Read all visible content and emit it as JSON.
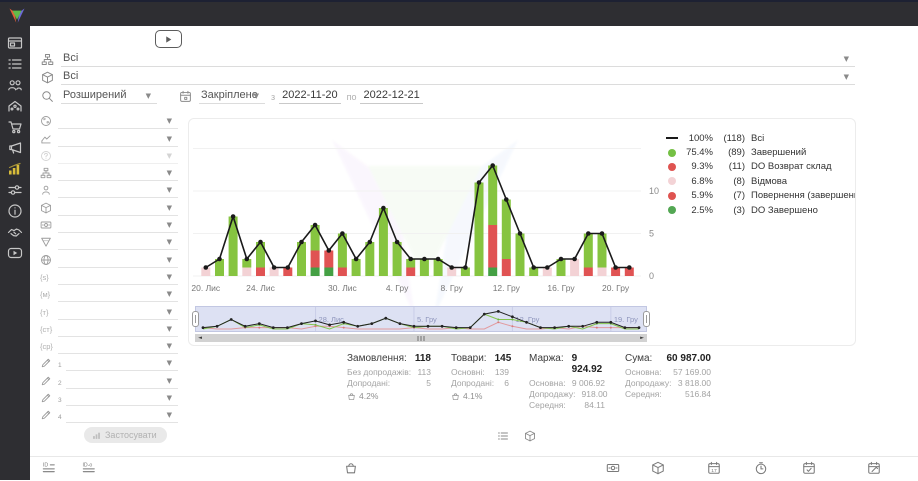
{
  "sidebar": {
    "items": [
      {
        "icon": "window-icon"
      },
      {
        "icon": "list-icon"
      },
      {
        "icon": "users-icon"
      },
      {
        "icon": "building-icon"
      },
      {
        "icon": "cart-icon"
      },
      {
        "icon": "megaphone-icon"
      },
      {
        "icon": "analytics-icon",
        "active": true
      },
      {
        "icon": "sliders-icon"
      },
      {
        "icon": "info-icon"
      },
      {
        "icon": "handshake-icon"
      },
      {
        "icon": "video-icon"
      }
    ]
  },
  "filters": {
    "source": {
      "icon": "sitemap-icon",
      "value": "Всі"
    },
    "product": {
      "icon": "box-icon",
      "value": "Всі"
    },
    "mode": {
      "icon": "search-icon",
      "value": "Розширений"
    },
    "period": {
      "icon": "calendar-icon",
      "value": "Закріплене"
    },
    "from_label": "з",
    "date_from": "2022-11-20",
    "to_label": "по",
    "date_to": "2022-12-21"
  },
  "filter_panel": {
    "rows": [
      {
        "icon": "globe-icon"
      },
      {
        "icon": "trend-icon"
      },
      {
        "icon": "question-icon",
        "disabled": true
      },
      {
        "icon": "sitemap-icon"
      },
      {
        "icon": "person-icon"
      },
      {
        "icon": "box-icon"
      },
      {
        "icon": "money-icon"
      },
      {
        "icon": "funnel-icon"
      },
      {
        "icon": "web-icon"
      },
      {
        "text": "{s}"
      },
      {
        "text": "{м}"
      },
      {
        "text": "{т}"
      },
      {
        "text": "{ст}"
      },
      {
        "text": "{ср}"
      },
      {
        "icon": "pencil-icon",
        "sub": "1"
      },
      {
        "icon": "pencil-icon",
        "sub": "2"
      },
      {
        "icon": "pencil-icon",
        "sub": "3"
      },
      {
        "icon": "pencil-icon",
        "sub": "4"
      }
    ],
    "apply_label": "Застосувати"
  },
  "chart_data": {
    "type": "bar",
    "stacked": true,
    "days": 32,
    "date_range": [
      "2022-11-20",
      "2022-12-21"
    ],
    "x_tick_labels": [
      "20. Лис",
      "24. Лис",
      "30. Лис",
      "4. Гру",
      "8. Гру",
      "12. Гру",
      "16. Гру",
      "20. Гру"
    ],
    "x_tick_indices": [
      0,
      4,
      10,
      14,
      18,
      22,
      26,
      30
    ],
    "y_ticks": [
      0,
      5,
      10
    ],
    "ylim": [
      0,
      15
    ],
    "series": [
      {
        "name": "DO Завершено",
        "color": "#44a044",
        "values": [
          0,
          0,
          0,
          0,
          0,
          0,
          0,
          0,
          1,
          1,
          0,
          0,
          0,
          0,
          0,
          0,
          0,
          0,
          0,
          0,
          0,
          1,
          0,
          0,
          0,
          0,
          0,
          0,
          0,
          0,
          0,
          0
        ]
      },
      {
        "name": "DO Возврат склад / Повернення (завершений)",
        "color": "#e05353",
        "values": [
          0,
          0,
          0,
          0,
          1,
          0,
          1,
          0,
          2,
          2,
          1,
          0,
          0,
          0,
          0,
          1,
          0,
          0,
          0,
          0,
          0,
          5,
          2,
          0,
          0,
          0,
          0,
          0,
          1,
          0,
          1,
          1
        ]
      },
      {
        "name": "Відмова",
        "color": "#f3d2d5",
        "values": [
          1,
          0,
          0,
          1,
          0,
          1,
          0,
          0,
          0,
          0,
          0,
          0,
          0,
          0,
          0,
          0,
          0,
          0,
          1,
          0,
          0,
          0,
          0,
          0,
          0,
          1,
          0,
          2,
          0,
          1,
          0,
          0
        ]
      },
      {
        "name": "Завершений",
        "color": "#86c440",
        "values": [
          0,
          2,
          7,
          1,
          3,
          0,
          0,
          4,
          3,
          0,
          4,
          2,
          4,
          8,
          4,
          1,
          2,
          2,
          0,
          1,
          11,
          7,
          7,
          5,
          1,
          0,
          2,
          0,
          4,
          4,
          0,
          0
        ]
      }
    ],
    "line": {
      "name": "Всі",
      "color": "#1a1a1a",
      "values": [
        1,
        2,
        7,
        2,
        4,
        1,
        1,
        4,
        6,
        3,
        5,
        2,
        4,
        8,
        4,
        2,
        2,
        2,
        1,
        1,
        11,
        13,
        9,
        5,
        1,
        1,
        2,
        2,
        5,
        5,
        1,
        1
      ]
    }
  },
  "legend": {
    "items": [
      {
        "marker": "line",
        "color": "#1a1a1a",
        "pct": "100%",
        "count": "(118)",
        "label": "Всі"
      },
      {
        "marker": "dot",
        "color": "#74c044",
        "pct": "75.4%",
        "count": "(89)",
        "label": "Завершений"
      },
      {
        "marker": "dot",
        "color": "#df5350",
        "pct": "9.3%",
        "count": "(11)",
        "label": "DO Возврат склад"
      },
      {
        "marker": "dot",
        "color": "#f3d3d6",
        "pct": "6.8%",
        "count": "(8)",
        "label": "Відмова"
      },
      {
        "marker": "dot",
        "color": "#df5350",
        "pct": "5.9%",
        "count": "(7)",
        "label": "Повернення (завершений)"
      },
      {
        "marker": "dot",
        "color": "#53a753",
        "pct": "2.5%",
        "count": "(3)",
        "label": "DO Завершено"
      }
    ]
  },
  "navigator": {
    "labels": [
      "28. Лис",
      "5. Гру",
      "12. Гру",
      "19. Гру"
    ],
    "label_indices": [
      8,
      15,
      22,
      29
    ]
  },
  "stats": {
    "columns": [
      {
        "title": "Замовлення:",
        "value": "118",
        "rows": [
          [
            "Без допродажів:",
            "113"
          ],
          [
            "Допродані:",
            "5"
          ]
        ],
        "foot_icon": "basket-upsell-icon",
        "foot": "4.2%"
      },
      {
        "title": "Товари:",
        "value": "145",
        "rows": [
          [
            "Основні:",
            "139"
          ],
          [
            "Допродані:",
            "6"
          ]
        ],
        "foot_icon": "basket-upsell-icon",
        "foot": "4.1%"
      },
      {
        "title": "Маржа:",
        "value": "9 924.92",
        "rows": [
          [
            "Основна:",
            "9 006.92"
          ],
          [
            "Допродажу:",
            "918.00"
          ],
          [
            "Середня:",
            "84.11"
          ]
        ]
      },
      {
        "title": "Сума:",
        "value": "60 987.00",
        "rows": [
          [
            "Основна:",
            "57 169.00"
          ],
          [
            "Допродажу:",
            "3 818.00"
          ],
          [
            "Середня:",
            "516.84"
          ]
        ]
      }
    ]
  },
  "view_toggles": [
    {
      "icon": "list-icon"
    },
    {
      "icon": "box-icon"
    }
  ],
  "bottom_bar": {
    "items": [
      {
        "icon": "id-lines-icon"
      },
      {
        "icon": "id-o-lines-icon"
      },
      {
        "icon": "bag-icon"
      },
      {
        "icon": "money-icon"
      },
      {
        "icon": "box-icon"
      },
      {
        "icon": "calendar-date-icon"
      },
      {
        "icon": "clock-icon"
      },
      {
        "icon": "calendar-check-icon"
      },
      {
        "icon": "calendar-edit-icon"
      }
    ]
  }
}
